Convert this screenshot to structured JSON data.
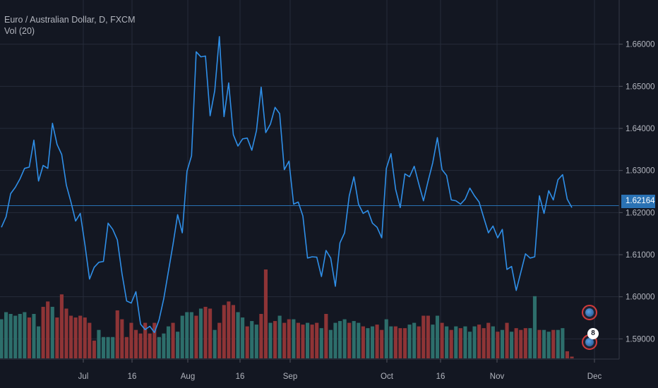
{
  "legend": {
    "symbol": "Euro / Australian Dollar, D, FXCM",
    "volume": "Vol (20)"
  },
  "last_price_label": "1.62164",
  "event_badge": {
    "count": "8",
    "icon": "flag-icon"
  },
  "colors": {
    "background": "#131722",
    "line": "#2f8fe8",
    "grid": "#262b3a",
    "volume_up": "#2d6e6b",
    "volume_down": "#8e3436",
    "price_line": "#2a72b4"
  },
  "chart_data": {
    "type": "line",
    "y_ticks": [
      "1.59000",
      "1.60000",
      "1.61000",
      "1.62000",
      "1.63000",
      "1.64000",
      "1.65000",
      "1.66000"
    ],
    "ylim": [
      1.5852,
      1.6705
    ],
    "x_ticks": [
      "Jul",
      "16",
      "Aug",
      "16",
      "Sep",
      "Oct",
      "16",
      "Nov",
      "Dec"
    ],
    "grid": true,
    "last_price": 1.62164,
    "series": [
      {
        "values": [
          1.6165,
          1.619,
          1.6245,
          1.626,
          1.628,
          1.6305,
          1.6308,
          1.6372,
          1.6275,
          1.6312,
          1.6305,
          1.6412,
          1.6362,
          1.6338,
          1.6265,
          1.6225,
          1.618,
          1.6198,
          1.6125,
          1.6042,
          1.607,
          1.6082,
          1.6084,
          1.6175,
          1.616,
          1.6135,
          1.6055,
          1.599,
          1.5985,
          1.6012,
          1.5935,
          1.5922,
          1.593,
          1.5915,
          1.5945,
          1.5995,
          1.606,
          1.6125,
          1.6195,
          1.6152,
          1.6298,
          1.6335,
          1.6582,
          1.657,
          1.6572,
          1.643,
          1.649,
          1.6618,
          1.6428,
          1.6508,
          1.6385,
          1.6358,
          1.6375,
          1.6377,
          1.6348,
          1.6395,
          1.6498,
          1.639,
          1.641,
          1.645,
          1.6435,
          1.6302,
          1.6322,
          1.622,
          1.6225,
          1.6192,
          1.6092,
          1.6095,
          1.6094,
          1.6048,
          1.611,
          1.6092,
          1.6025,
          1.6128,
          1.6152,
          1.624,
          1.6285,
          1.622,
          1.6198,
          1.6205,
          1.6175,
          1.6165,
          1.614,
          1.6305,
          1.634,
          1.6255,
          1.6212,
          1.6292,
          1.6285,
          1.631,
          1.6268,
          1.6228,
          1.6275,
          1.6318,
          1.6378,
          1.6302,
          1.6288,
          1.623,
          1.6228,
          1.622,
          1.6232,
          1.6258,
          1.624,
          1.6225,
          1.6188,
          1.6152,
          1.6168,
          1.614,
          1.616,
          1.6065,
          1.6072,
          1.6015,
          1.6058,
          1.6102,
          1.6092,
          1.6095,
          1.624,
          1.6198,
          1.6252,
          1.623,
          1.6278,
          1.629,
          1.6232,
          1.6212
        ],
        "volume": [
          2.2,
          2.6,
          2.5,
          2.4,
          2.5,
          2.6,
          2.3,
          2.5,
          1.8,
          2.9,
          3.2,
          2.9,
          2.3,
          3.6,
          2.8,
          2.4,
          2.3,
          2.4,
          2.3,
          2.0,
          1.0,
          1.6,
          1.2,
          1.2,
          1.2,
          2.7,
          2.2,
          1.2,
          2.0,
          1.6,
          1.4,
          2.0,
          1.4,
          2.0,
          1.2,
          1.4,
          1.8,
          2.0,
          1.5,
          2.4,
          2.6,
          2.6,
          2.4,
          2.8,
          2.9,
          2.8,
          1.6,
          2.0,
          3.0,
          3.2,
          3.0,
          2.6,
          2.3,
          1.8,
          2.1,
          1.9,
          2.5,
          5.0,
          2.0,
          2.1,
          2.4,
          2.0,
          2.2,
          2.2,
          2.0,
          1.9,
          2.0,
          1.9,
          2.0,
          1.7,
          2.5,
          1.6,
          2.0,
          2.1,
          2.2,
          2.0,
          2.1,
          2.0,
          1.8,
          1.7,
          1.8,
          1.9,
          1.6,
          2.2,
          1.8,
          1.8,
          1.7,
          1.7,
          1.9,
          2.0,
          1.8,
          2.4,
          2.4,
          1.9,
          2.4,
          2.0,
          1.8,
          1.6,
          1.8,
          1.7,
          1.8,
          1.5,
          1.8,
          1.9,
          1.7,
          2.0,
          1.8,
          1.5,
          1.6,
          2.0,
          1.5,
          1.7,
          1.6,
          1.7,
          1.7,
          3.5,
          1.6,
          1.6,
          1.5,
          1.6,
          1.6,
          1.7,
          0.4,
          0.1
        ],
        "volume_up": [
          true,
          true,
          true,
          true,
          true,
          true,
          false,
          true,
          true,
          false,
          false,
          true,
          false,
          false,
          false,
          false,
          false,
          false,
          false,
          false,
          false,
          true,
          true,
          true,
          true,
          false,
          false,
          false,
          false,
          false,
          false,
          false,
          false,
          false,
          true,
          true,
          true,
          false,
          true,
          true,
          true,
          true,
          false,
          true,
          false,
          false,
          true,
          false,
          false,
          false,
          false,
          true,
          true,
          false,
          true,
          true,
          false,
          false,
          true,
          false,
          true,
          false,
          false,
          true,
          false,
          false,
          true,
          false,
          false,
          true,
          false,
          true,
          true,
          true,
          true,
          false,
          true,
          true,
          false,
          true,
          true,
          false,
          false,
          true,
          true,
          false,
          false,
          false,
          true,
          true,
          false,
          false,
          false,
          true,
          true,
          false,
          true,
          false,
          true,
          false,
          true,
          true,
          true,
          false,
          false,
          false,
          true,
          false,
          true,
          false,
          true,
          false,
          false,
          false,
          true,
          true,
          false,
          true,
          true,
          false,
          true,
          true,
          false,
          false
        ]
      }
    ]
  }
}
